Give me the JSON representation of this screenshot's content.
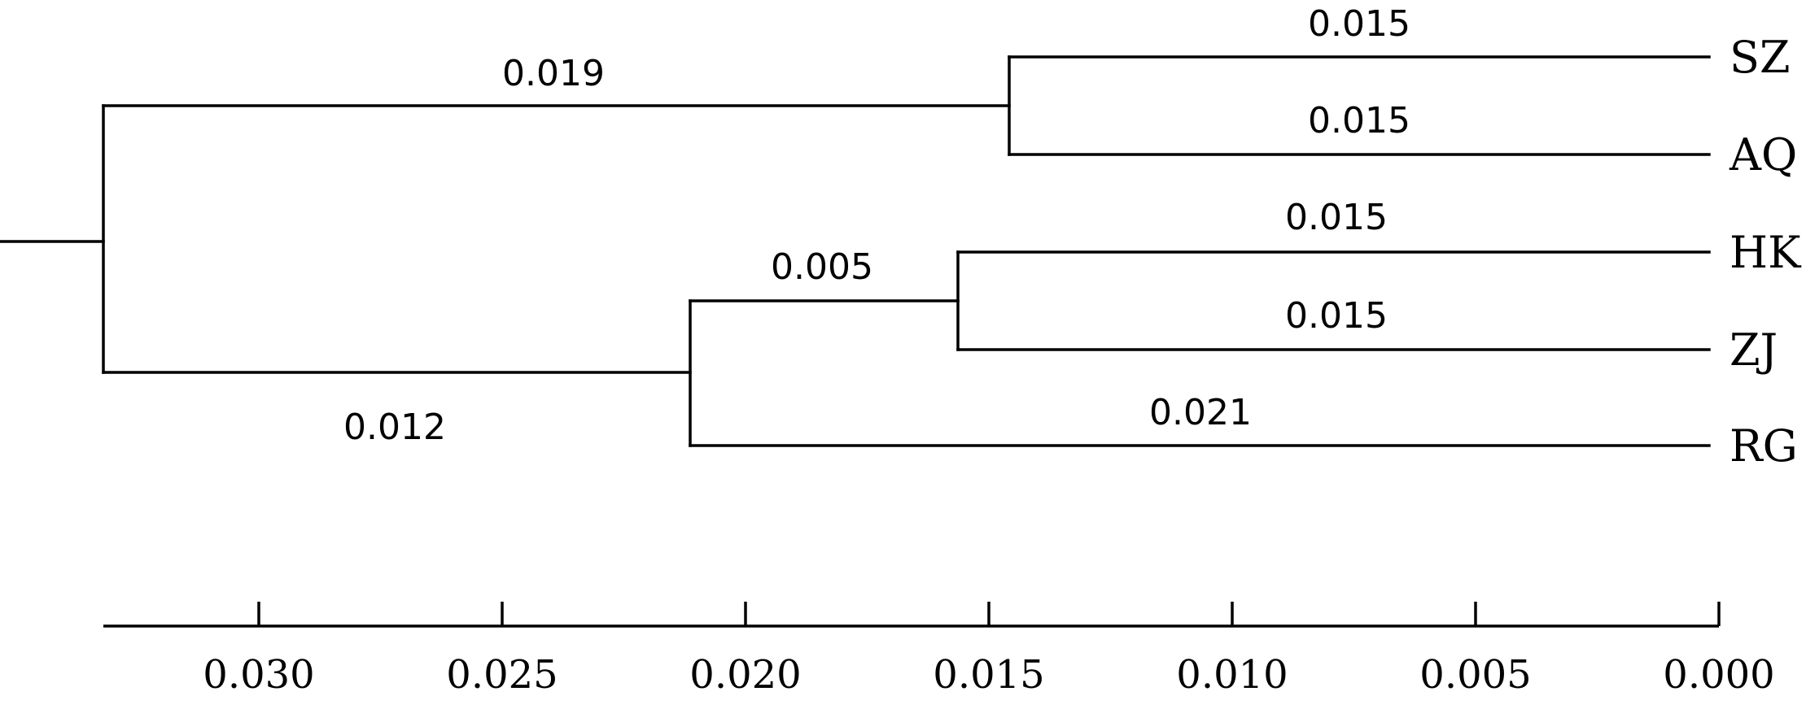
{
  "chart_data": {
    "type": "dendrogram",
    "axis": {
      "ticks": [
        "0.030",
        "0.025",
        "0.020",
        "0.015",
        "0.010",
        "0.005",
        "0.000"
      ],
      "tick_values": [
        0.03,
        0.025,
        0.02,
        0.015,
        0.01,
        0.005,
        0.0
      ],
      "reversed": true
    },
    "leaves": [
      "SZ",
      "AQ",
      "HK",
      "ZJ",
      "RG"
    ],
    "branch_lengths": {
      "SZ": "0.015",
      "AQ": "0.015",
      "HK": "0.015",
      "ZJ": "0.015",
      "RG": "0.021",
      "SZ_AQ_clade": "0.019",
      "HK_ZJ_clade": "0.005",
      "HK_ZJ_RG_clade": "0.012"
    },
    "tree": {
      "children": [
        {
          "branch": "0.019",
          "children": [
            {
              "leaf": "SZ",
              "branch": "0.015"
            },
            {
              "leaf": "AQ",
              "branch": "0.015"
            }
          ]
        },
        {
          "branch": "0.012",
          "children": [
            {
              "branch": "0.005",
              "children": [
                {
                  "leaf": "HK",
                  "branch": "0.015"
                },
                {
                  "leaf": "ZJ",
                  "branch": "0.015"
                }
              ]
            },
            {
              "leaf": "RG",
              "branch": "0.021"
            }
          ]
        }
      ]
    }
  }
}
